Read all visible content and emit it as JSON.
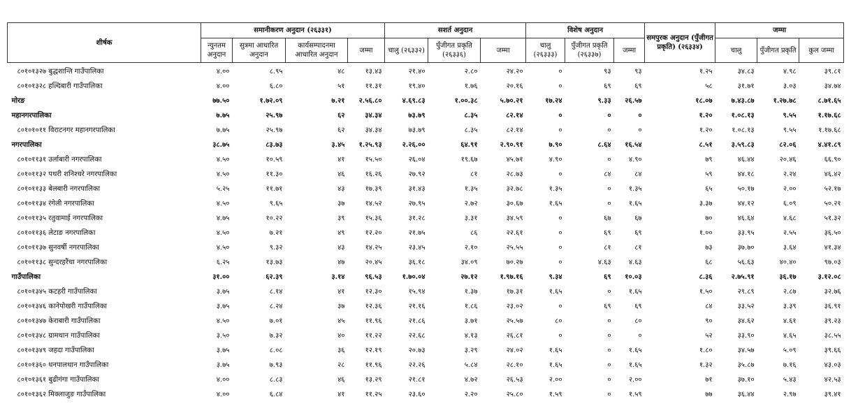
{
  "table": {
    "title_header": "शीर्षक",
    "groups": [
      {
        "label": "समानीकरण अनुदान (२६३३१)",
        "columns": [
          "न्युनतम अनुदान",
          "सुत्रमा आधारित अनुदान",
          "कार्यसम्पादनमा आधारित अनुदान",
          "जम्मा"
        ]
      },
      {
        "label": "सशर्त अनुदान",
        "columns": [
          "चालु (२६३३२)",
          "पुँजीगत प्रकृति (२६३३६)",
          "जम्मा"
        ]
      },
      {
        "label": "विशेष अनुदान",
        "columns": [
          "चालु (२६३३३)",
          "पुँजीगत प्रकृति (२६३३७)",
          "जम्मा"
        ]
      },
      {
        "label": "समपुरक अनुदान (पुँजीगत प्रकृति) (२६३३४)",
        "columns": []
      },
      {
        "label": "जम्मा",
        "columns": [
          "चालु",
          "पुँजीगत प्रकृति",
          "कुल जम्मा"
        ]
      }
    ],
    "rows": [
      [
        "८०१०१३२७ बुद्धशान्ति गाउँपालिका",
        "४.००",
        "८.९५",
        "४८",
        "१३.४३",
        "२१.४०",
        "२.८०",
        "२४.२०",
        "०",
        "९३",
        "९३",
        "१.२५",
        "३४.८३",
        "४.९८",
        "३९.८१"
      ],
      [
        "८०१०१३२८ हल्दिबारी गाउँपालिका",
        "४.००",
        "६.८०",
        "५१",
        "११.३१",
        "१९.४०",
        "१.७६",
        "२०.१६",
        "०",
        "६९",
        "६९",
        "५८",
        "३१.७१",
        "३.०३",
        "३४.७४"
      ],
      [
        "मोरङ",
        "७७.५०",
        "१.७२.०९",
        "७.२१",
        "२.५६.८०",
        "४.६९.८३",
        "१.००.३८",
        "५.७०.२१",
        "१७.२४",
        "९.३३",
        "२६.५७",
        "१८.०७",
        "७.४३.८७",
        "१.२७.७८",
        "८.७१.६५"
      ],
      [
        "महानगरपालिका",
        "७.७५",
        "२५.९७",
        "६२",
        "३४.३४",
        "७३.७९",
        "८.३५",
        "८२.१४",
        "०",
        "०",
        "०",
        "१.२०",
        "१.०८.१३",
        "९.५५",
        "१.१७.६८"
      ],
      [
        "८०१०१०११ विराटनगर महानगरपालिका",
        "७.७५",
        "२५.९७",
        "६२",
        "३४.३४",
        "७३.७९",
        "८.३५",
        "८२.१४",
        "०",
        "०",
        "०",
        "१.२०",
        "१.०८.१३",
        "९.५५",
        "१.१७.६८"
      ],
      [
        "नगरपालिका",
        "३८.७५",
        "८३.७३",
        "३.४५",
        "१.२५.९३",
        "२.२६.००",
        "६४.९१",
        "२.९०.९१",
        "७.९०",
        "८.६४",
        "१६.५४",
        "८.५१",
        "३.५९.८३",
        "८२.०६",
        "४.४१.८९"
      ],
      [
        "८०१०११३१ उर्लाबारी नगरपालिका",
        "४.५०",
        "१०.५९",
        "४१",
        "१५.५०",
        "२६.०४",
        "१९.६७",
        "४५.७१",
        "४.९०",
        "०",
        "४.९०",
        "७९",
        "४६.४४",
        "२०.४६",
        "६६.९०"
      ],
      [
        "८०१०११३२ पथरी शनिश्चरे नगरपालिका",
        "४.५०",
        "११.३०",
        "४६",
        "१६.२६",
        "२७.९२",
        "८१",
        "२८.७३",
        "०",
        "८४",
        "८४",
        "५९",
        "४४.१८",
        "२.२४",
        "४६.४२"
      ],
      [
        "८०१०११३३ बेलबारी नगरपालिका",
        "५.२५",
        "११.७१",
        "४३",
        "१७.३९",
        "३१.४३",
        "१.३५",
        "३२.७८",
        "१.३५",
        "०",
        "१.३५",
        "६५",
        "५०.१७",
        "२.००",
        "५२.१७"
      ],
      [
        "८०१०११३४ रंगेली नगरपालिका",
        "४.५०",
        "९.६५",
        "३७",
        "१४.५२",
        "२७.९५",
        "२.७२",
        "३०.६७",
        "१.६५",
        "०",
        "१.६५",
        "३.३७",
        "४४.१२",
        "६.०९",
        "५०.२१"
      ],
      [
        "८०१०११३५ रतुवामाई नगरपालिका",
        "४.७५",
        "१०.२२",
        "३९",
        "१५.३६",
        "३१.२८",
        "३.३१",
        "३४.५९",
        "०",
        "६७",
        "६७",
        "७०",
        "४६.६४",
        "४.६८",
        "५१.३२"
      ],
      [
        "८०१०११३६ लेटाङ नगरपालिका",
        "४.५०",
        "७.२१",
        "४९",
        "१२.२०",
        "२१.७५",
        "८६",
        "२२.६१",
        "०",
        "६९",
        "६९",
        "१.००",
        "३३.९५",
        "२.५५",
        "३६.५०"
      ],
      [
        "८०१०११३७ सुनवर्षी नगरपालिका",
        "४.५०",
        "९.३२",
        "४३",
        "१४.२५",
        "२३.४५",
        "२.१०",
        "२५.५५",
        "०",
        "८१",
        "८१",
        "७३",
        "३७.७०",
        "३.६४",
        "४१.३४"
      ],
      [
        "८०१०११३८ सुन्दरहरैंचा नगरपालिका",
        "६.२५",
        "१३.७३",
        "४७",
        "२०.४५",
        "३६.१८",
        "३४.०९",
        "७०.२७",
        "०",
        "४.६३",
        "४.६३",
        "६८",
        "५६.६३",
        "४०.४०",
        "९७.०३"
      ],
      [
        "गाउँपालिका",
        "३१.००",
        "६२.३९",
        "३.१४",
        "९६.५३",
        "१.७०.०४",
        "२७.१२",
        "१.९७.१६",
        "९.३४",
        "६९",
        "१०.०३",
        "८.३६",
        "२.७५.९१",
        "३६.१७",
        "३.१२.०८"
      ],
      [
        "८०१०१३४५ कटहरी गाउँपालिका",
        "३.७५",
        "८.१४",
        "४१",
        "१२.३०",
        "१५.९४",
        "१.३७",
        "१७.३१",
        "१.६५",
        "०",
        "१.६५",
        "१.५०",
        "२९.८९",
        "२.८७",
        "३२.७६"
      ],
      [
        "८०१०१३४६ कानेपोखरी गाउँपालिका",
        "३.७५",
        "८.२४",
        "३७",
        "१२.३६",
        "२१.१६",
        "१.८६",
        "२३.०२",
        "०",
        "६९",
        "६९",
        "८४",
        "३३.५२",
        "३.३९",
        "३६.९१"
      ],
      [
        "८०१०१३४७ केराबारी गाउँपालिका",
        "४.५०",
        "७.०१",
        "४५",
        "११.९६",
        "२१.८६",
        "३.७१",
        "२५.५७",
        "८०",
        "०",
        "८०",
        "९०",
        "३४.६२",
        "४.६१",
        "३९.२३"
      ],
      [
        "८०१०१३४८ ग्रामथान गाउँपालिका",
        "३.५०",
        "७.३२",
        "४०",
        "११.२२",
        "२२.६८",
        "४.१३",
        "२६.८१",
        "०",
        "०",
        "०",
        "५२",
        "३३.९०",
        "४.६५",
        "३८.५५"
      ],
      [
        "८०१०१३४९ जहदा गाउँपालिका",
        "३.७५",
        "८.०८",
        "३६",
        "१२.१९",
        "२०.७३",
        "३.२९",
        "२४.०२",
        "१.६५",
        "०",
        "१.६५",
        "१.८०",
        "३४.५७",
        "५.०९",
        "३९.६६"
      ],
      [
        "८०१०१३६० धनपालथान गाउँपालिका",
        "३.७५",
        "७.९३",
        "२८",
        "११.९६",
        "२२.२६",
        "५.८४",
        "२८.१०",
        "१.६५",
        "०",
        "१.६५",
        "१.३२",
        "३५.८७",
        "७.१६",
        "४३.०३"
      ],
      [
        "८०१०१३६१ बुढीगंगा गाउँपालिका",
        "४.००",
        "८.८३",
        "४६",
        "१३.२९",
        "२१.८१",
        "४.७२",
        "२६.५३",
        "२.००",
        "०",
        "२.००",
        "७१",
        "३७.१०",
        "५.४३",
        "४२.५३"
      ],
      [
        "८०१०१३६२ मिक्लाजुङ गाउँपालिका",
        "४.००",
        "६.८४",
        "४१",
        "११.२५",
        "२३.६०",
        "२.२०",
        "२५.८०",
        "१.५९",
        "०",
        "१.५९",
        "७७",
        "३६.४४",
        "२.९७",
        "३९.४१"
      ]
    ]
  }
}
